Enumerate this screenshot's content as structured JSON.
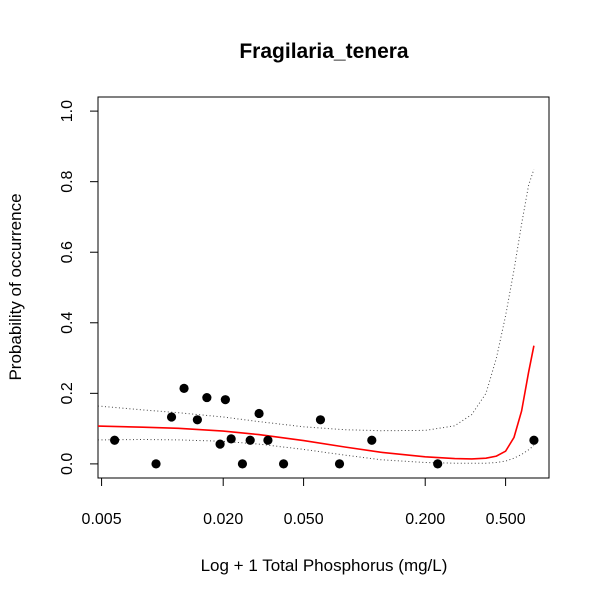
{
  "chart_data": {
    "type": "scatter",
    "title": "Fragilaria_tenera",
    "xlabel": "Log + 1 Total Phosphorus (mg/L)",
    "ylabel": "Probability of occurrence",
    "x_scale": "log",
    "xlim": [
      0.0048,
      0.82
    ],
    "ylim": [
      -0.04,
      1.04
    ],
    "x_ticks": [
      {
        "value": 0.005,
        "label": "0.005"
      },
      {
        "value": 0.02,
        "label": "0.020"
      },
      {
        "value": 0.05,
        "label": "0.050"
      },
      {
        "value": 0.2,
        "label": "0.200"
      },
      {
        "value": 0.5,
        "label": "0.500"
      }
    ],
    "y_ticks": [
      {
        "value": 0.0,
        "label": "0.0"
      },
      {
        "value": 0.2,
        "label": "0.2"
      },
      {
        "value": 0.4,
        "label": "0.4"
      },
      {
        "value": 0.6,
        "label": "0.6"
      },
      {
        "value": 0.8,
        "label": "0.8"
      },
      {
        "value": 1.0,
        "label": "1.0"
      }
    ],
    "colors": {
      "fit": "#ff0000",
      "ci": "#444444",
      "points": "#000000"
    },
    "points": [
      {
        "x": 0.0058,
        "y": 0.067
      },
      {
        "x": 0.0093,
        "y": 0.0
      },
      {
        "x": 0.0111,
        "y": 0.133
      },
      {
        "x": 0.0128,
        "y": 0.214
      },
      {
        "x": 0.0149,
        "y": 0.125
      },
      {
        "x": 0.0166,
        "y": 0.188
      },
      {
        "x": 0.0193,
        "y": 0.056
      },
      {
        "x": 0.0205,
        "y": 0.182
      },
      {
        "x": 0.0219,
        "y": 0.071
      },
      {
        "x": 0.0249,
        "y": 0.0
      },
      {
        "x": 0.0272,
        "y": 0.067
      },
      {
        "x": 0.0301,
        "y": 0.143
      },
      {
        "x": 0.0333,
        "y": 0.067
      },
      {
        "x": 0.0398,
        "y": 0.0
      },
      {
        "x": 0.0606,
        "y": 0.125
      },
      {
        "x": 0.0753,
        "y": 0.0
      },
      {
        "x": 0.1088,
        "y": 0.067
      },
      {
        "x": 0.2306,
        "y": 0.0
      },
      {
        "x": 0.6906,
        "y": 0.067
      }
    ],
    "series": [
      {
        "style": "solid",
        "x": [
          0.0048,
          0.008,
          0.012,
          0.02,
          0.03,
          0.05,
          0.08,
          0.12,
          0.2,
          0.28,
          0.34,
          0.4,
          0.45,
          0.5,
          0.55,
          0.6,
          0.65,
          0.69
        ],
        "y": [
          0.107,
          0.104,
          0.101,
          0.093,
          0.083,
          0.066,
          0.048,
          0.033,
          0.02,
          0.015,
          0.014,
          0.016,
          0.022,
          0.036,
          0.075,
          0.15,
          0.26,
          0.335
        ]
      },
      {
        "style": "dotted",
        "x": [
          0.0048,
          0.008,
          0.012,
          0.02,
          0.03,
          0.05,
          0.08,
          0.12,
          0.2,
          0.28,
          0.34,
          0.4,
          0.45,
          0.5,
          0.55,
          0.6,
          0.65,
          0.69
        ],
        "y": [
          0.164,
          0.153,
          0.145,
          0.133,
          0.12,
          0.105,
          0.097,
          0.094,
          0.095,
          0.108,
          0.14,
          0.2,
          0.3,
          0.42,
          0.55,
          0.68,
          0.79,
          0.835
        ]
      },
      {
        "style": "dotted",
        "x": [
          0.0048,
          0.008,
          0.012,
          0.02,
          0.03,
          0.05,
          0.08,
          0.12,
          0.2,
          0.28,
          0.34,
          0.4,
          0.45,
          0.5,
          0.55,
          0.6,
          0.65,
          0.69
        ],
        "y": [
          0.068,
          0.069,
          0.068,
          0.064,
          0.056,
          0.041,
          0.025,
          0.012,
          0.004,
          0.002,
          0.002,
          0.002,
          0.004,
          0.008,
          0.016,
          0.027,
          0.04,
          0.052
        ]
      }
    ]
  }
}
